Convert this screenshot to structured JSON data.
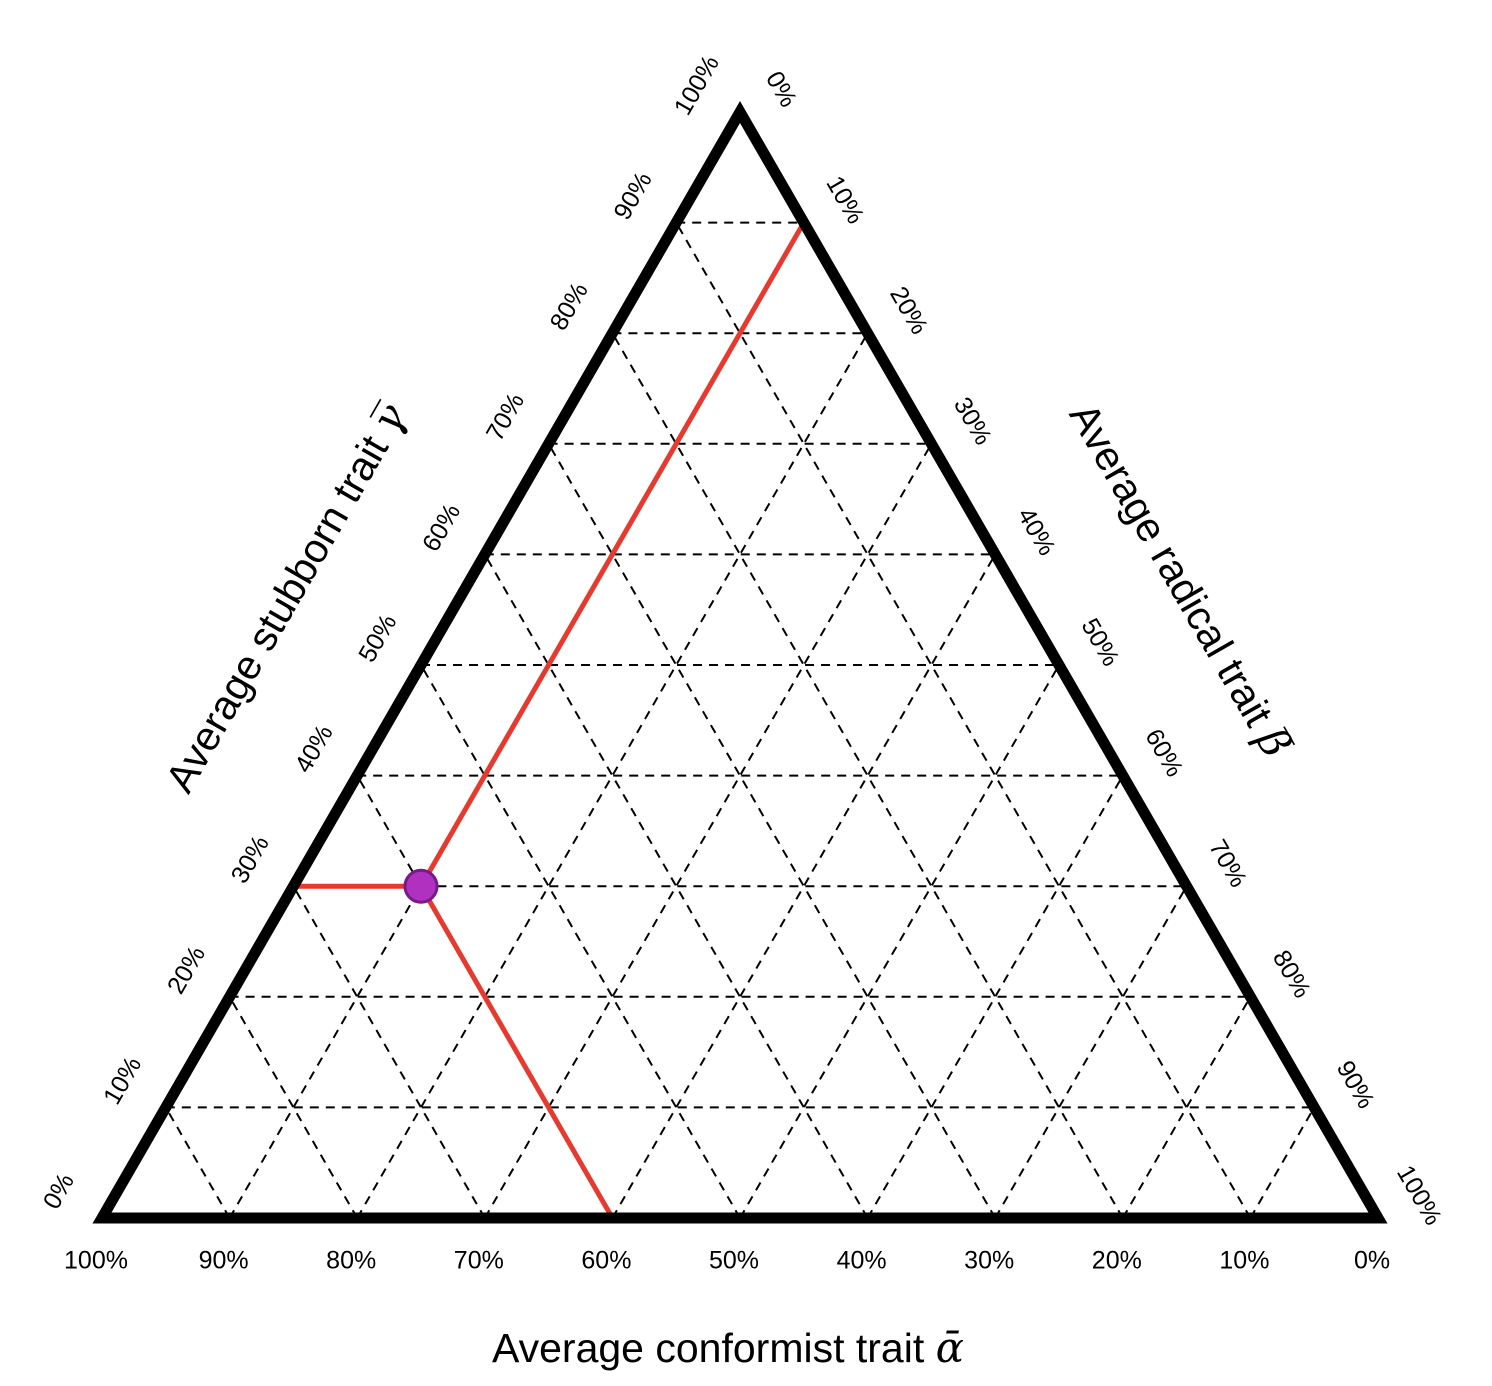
{
  "chart_data": {
    "type": "ternary",
    "title": "",
    "axes": {
      "bottom": {
        "label": "Average conformist trait ",
        "symbol": "ᾱ",
        "ticks": [
          "100%",
          "90%",
          "80%",
          "70%",
          "60%",
          "50%",
          "40%",
          "30%",
          "20%",
          "10%",
          "0%"
        ]
      },
      "left": {
        "label": "Average stubborn trait ",
        "symbol": "γ̅",
        "ticks": [
          "0%",
          "10%",
          "20%",
          "30%",
          "40%",
          "50%",
          "60%",
          "70%",
          "80%",
          "90%",
          "100%"
        ]
      },
      "right": {
        "label": "Average radical trait ",
        "symbol": "β̅",
        "ticks": [
          "0%",
          "10%",
          "20%",
          "30%",
          "40%",
          "50%",
          "60%",
          "70%",
          "80%",
          "90%",
          "100%"
        ]
      }
    },
    "grid": true,
    "grid_step_percent": 10,
    "point": {
      "conformist_percent": 60,
      "stubborn_percent": 30,
      "radical_percent": 10,
      "color": "#b030c0",
      "outline": "#7a1a88"
    },
    "guide_line_color": "#e8392e",
    "frame_color": "#000000"
  }
}
